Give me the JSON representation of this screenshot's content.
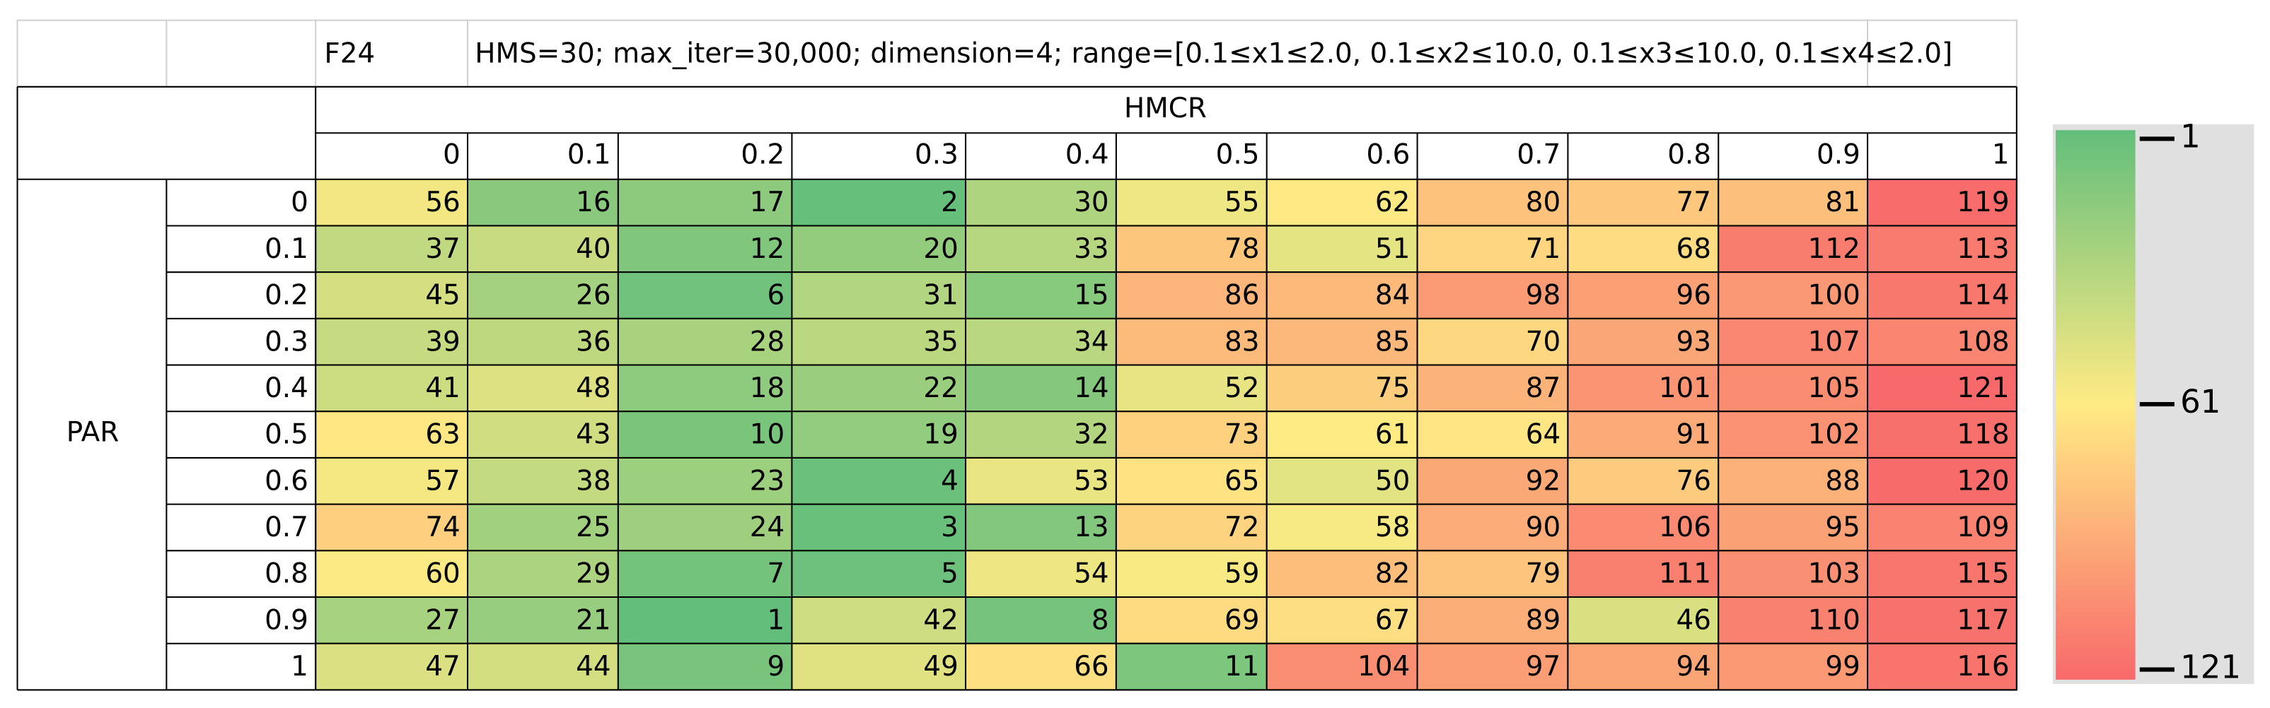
{
  "header": {
    "label": "F24",
    "params": "HMS=30; max_iter=30,000; dimension=4; range=[0.1≤x1≤2.0, 0.1≤x2≤10.0, 0.1≤x3≤10.0, 0.1≤x4≤2.0]"
  },
  "table": {
    "column_title": "HMCR",
    "row_title": "PAR",
    "columns": [
      0,
      0.1,
      0.2,
      0.3,
      0.4,
      0.5,
      0.6,
      0.7,
      0.8,
      0.9,
      1
    ],
    "rows": [
      {
        "label": 0,
        "values": [
          56,
          16,
          17,
          2,
          30,
          55,
          62,
          80,
          77,
          81,
          119
        ]
      },
      {
        "label": 0.1,
        "values": [
          37,
          40,
          12,
          20,
          33,
          78,
          51,
          71,
          68,
          112,
          113
        ]
      },
      {
        "label": 0.2,
        "values": [
          45,
          26,
          6,
          31,
          15,
          86,
          84,
          98,
          96,
          100,
          114
        ]
      },
      {
        "label": 0.3,
        "values": [
          39,
          36,
          28,
          35,
          34,
          83,
          85,
          70,
          93,
          107,
          108
        ]
      },
      {
        "label": 0.4,
        "values": [
          41,
          48,
          18,
          22,
          14,
          52,
          75,
          87,
          101,
          105,
          121
        ]
      },
      {
        "label": 0.5,
        "values": [
          63,
          43,
          10,
          19,
          32,
          73,
          61,
          64,
          91,
          102,
          118
        ]
      },
      {
        "label": 0.6,
        "values": [
          57,
          38,
          23,
          4,
          53,
          65,
          50,
          92,
          76,
          88,
          120
        ]
      },
      {
        "label": 0.7,
        "values": [
          74,
          25,
          24,
          3,
          13,
          72,
          58,
          90,
          106,
          95,
          109
        ]
      },
      {
        "label": 0.8,
        "values": [
          60,
          29,
          7,
          5,
          54,
          59,
          82,
          79,
          111,
          103,
          115
        ]
      },
      {
        "label": 0.9,
        "values": [
          27,
          21,
          1,
          42,
          8,
          69,
          67,
          89,
          46,
          110,
          117
        ]
      },
      {
        "label": 1,
        "values": [
          47,
          44,
          9,
          49,
          66,
          11,
          104,
          97,
          94,
          99,
          116
        ]
      }
    ]
  },
  "color_scale": {
    "min": {
      "value": 1,
      "color": "#63be7b"
    },
    "mid": {
      "value": 61,
      "color": "#ffeb84"
    },
    "max": {
      "value": 121,
      "color": "#f8696b"
    }
  }
}
